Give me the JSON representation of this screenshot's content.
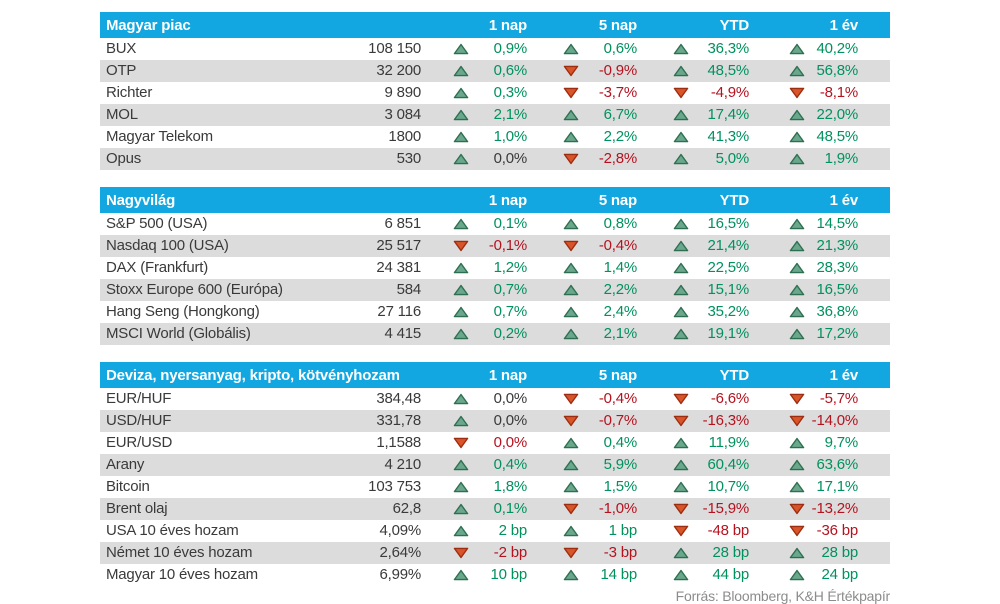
{
  "columns": [
    "1 nap",
    "5 nap",
    "YTD",
    "1 év"
  ],
  "footer": "Forrás: Bloomberg, K&H Értékpapír",
  "colors": {
    "header_bg": "#12a7e0",
    "row_alt_bg": "#dcdcdc",
    "text_dark": "#3a3a3a",
    "positive_text": "#00915e",
    "negative_text": "#b5121f",
    "triangle_up_fill": "#6aa78c",
    "triangle_up_stroke": "#2e6f52",
    "triangle_down_fill": "#d8552a",
    "triangle_down_stroke": "#9d2d10",
    "source_text": "#8c8c8c"
  },
  "chart_data": [
    {
      "type": "table",
      "title": "Magyar piac",
      "columns": [
        "1 nap",
        "5 nap",
        "YTD",
        "1 év"
      ],
      "rows": [
        {
          "name": "BUX",
          "value": "108 150",
          "changes": [
            {
              "dir": "up",
              "tone": "pos",
              "text": "0,9%"
            },
            {
              "dir": "up",
              "tone": "pos",
              "text": "0,6%"
            },
            {
              "dir": "up",
              "tone": "pos",
              "text": "36,3%"
            },
            {
              "dir": "up",
              "tone": "pos",
              "text": "40,2%"
            }
          ]
        },
        {
          "name": "OTP",
          "value": "32 200",
          "changes": [
            {
              "dir": "up",
              "tone": "pos",
              "text": "0,6%"
            },
            {
              "dir": "down",
              "tone": "neg",
              "text": "-0,9%"
            },
            {
              "dir": "up",
              "tone": "pos",
              "text": "48,5%"
            },
            {
              "dir": "up",
              "tone": "pos",
              "text": "56,8%"
            }
          ]
        },
        {
          "name": "Richter",
          "value": "9 890",
          "changes": [
            {
              "dir": "up",
              "tone": "pos",
              "text": "0,3%"
            },
            {
              "dir": "down",
              "tone": "neg",
              "text": "-3,7%"
            },
            {
              "dir": "down",
              "tone": "neg",
              "text": "-4,9%"
            },
            {
              "dir": "down",
              "tone": "neg",
              "text": "-8,1%"
            }
          ]
        },
        {
          "name": "MOL",
          "value": "3 084",
          "changes": [
            {
              "dir": "up",
              "tone": "pos",
              "text": "2,1%"
            },
            {
              "dir": "up",
              "tone": "pos",
              "text": "6,7%"
            },
            {
              "dir": "up",
              "tone": "pos",
              "text": "17,4%"
            },
            {
              "dir": "up",
              "tone": "pos",
              "text": "22,0%"
            }
          ]
        },
        {
          "name": "Magyar Telekom",
          "value": "1800",
          "changes": [
            {
              "dir": "up",
              "tone": "pos",
              "text": "1,0%"
            },
            {
              "dir": "up",
              "tone": "pos",
              "text": "2,2%"
            },
            {
              "dir": "up",
              "tone": "pos",
              "text": "41,3%"
            },
            {
              "dir": "up",
              "tone": "pos",
              "text": "48,5%"
            }
          ]
        },
        {
          "name": "Opus",
          "value": "530",
          "changes": [
            {
              "dir": "up",
              "tone": "neutral",
              "text": "0,0%"
            },
            {
              "dir": "down",
              "tone": "neg",
              "text": "-2,8%"
            },
            {
              "dir": "up",
              "tone": "pos",
              "text": "5,0%"
            },
            {
              "dir": "up",
              "tone": "pos",
              "text": "1,9%"
            }
          ]
        }
      ]
    },
    {
      "type": "table",
      "title": "Nagyvilág",
      "columns": [
        "1 nap",
        "5 nap",
        "YTD",
        "1 év"
      ],
      "rows": [
        {
          "name": "S&P 500 (USA)",
          "value": "6 851",
          "changes": [
            {
              "dir": "up",
              "tone": "pos",
              "text": "0,1%"
            },
            {
              "dir": "up",
              "tone": "pos",
              "text": "0,8%"
            },
            {
              "dir": "up",
              "tone": "pos",
              "text": "16,5%"
            },
            {
              "dir": "up",
              "tone": "pos",
              "text": "14,5%"
            }
          ]
        },
        {
          "name": "Nasdaq 100 (USA)",
          "value": "25 517",
          "changes": [
            {
              "dir": "down",
              "tone": "neg",
              "text": "-0,1%"
            },
            {
              "dir": "down",
              "tone": "neg",
              "text": "-0,4%"
            },
            {
              "dir": "up",
              "tone": "pos",
              "text": "21,4%"
            },
            {
              "dir": "up",
              "tone": "pos",
              "text": "21,3%"
            }
          ]
        },
        {
          "name": "DAX (Frankfurt)",
          "value": "24 381",
          "changes": [
            {
              "dir": "up",
              "tone": "pos",
              "text": "1,2%"
            },
            {
              "dir": "up",
              "tone": "pos",
              "text": "1,4%"
            },
            {
              "dir": "up",
              "tone": "pos",
              "text": "22,5%"
            },
            {
              "dir": "up",
              "tone": "pos",
              "text": "28,3%"
            }
          ]
        },
        {
          "name": "Stoxx Europe 600 (Európa)",
          "value": "584",
          "changes": [
            {
              "dir": "up",
              "tone": "pos",
              "text": "0,7%"
            },
            {
              "dir": "up",
              "tone": "pos",
              "text": "2,2%"
            },
            {
              "dir": "up",
              "tone": "pos",
              "text": "15,1%"
            },
            {
              "dir": "up",
              "tone": "pos",
              "text": "16,5%"
            }
          ]
        },
        {
          "name": "Hang Seng (Hongkong)",
          "value": "27 116",
          "changes": [
            {
              "dir": "up",
              "tone": "pos",
              "text": "0,7%"
            },
            {
              "dir": "up",
              "tone": "pos",
              "text": "2,4%"
            },
            {
              "dir": "up",
              "tone": "pos",
              "text": "35,2%"
            },
            {
              "dir": "up",
              "tone": "pos",
              "text": "36,8%"
            }
          ]
        },
        {
          "name": "MSCI World (Globális)",
          "value": "4 415",
          "changes": [
            {
              "dir": "up",
              "tone": "pos",
              "text": "0,2%"
            },
            {
              "dir": "up",
              "tone": "pos",
              "text": "2,1%"
            },
            {
              "dir": "up",
              "tone": "pos",
              "text": "19,1%"
            },
            {
              "dir": "up",
              "tone": "pos",
              "text": "17,2%"
            }
          ]
        }
      ]
    },
    {
      "type": "table",
      "title": "Deviza, nyersanyag, kripto, kötvényhozam",
      "columns": [
        "1 nap",
        "5 nap",
        "YTD",
        "1 év"
      ],
      "rows": [
        {
          "name": "EUR/HUF",
          "value": "384,48",
          "changes": [
            {
              "dir": "up",
              "tone": "neutral",
              "text": "0,0%"
            },
            {
              "dir": "down",
              "tone": "neg",
              "text": "-0,4%"
            },
            {
              "dir": "down",
              "tone": "neg",
              "text": "-6,6%"
            },
            {
              "dir": "down",
              "tone": "neg",
              "text": "-5,7%"
            }
          ]
        },
        {
          "name": "USD/HUF",
          "value": "331,78",
          "changes": [
            {
              "dir": "up",
              "tone": "neutral",
              "text": "0,0%"
            },
            {
              "dir": "down",
              "tone": "neg",
              "text": "-0,7%"
            },
            {
              "dir": "down",
              "tone": "neg",
              "text": "-16,3%"
            },
            {
              "dir": "down",
              "tone": "neg",
              "text": "-14,0%"
            }
          ]
        },
        {
          "name": "EUR/USD",
          "value": "1,1588",
          "changes": [
            {
              "dir": "down",
              "tone": "neg",
              "text": "0,0%"
            },
            {
              "dir": "up",
              "tone": "pos",
              "text": "0,4%"
            },
            {
              "dir": "up",
              "tone": "pos",
              "text": "11,9%"
            },
            {
              "dir": "up",
              "tone": "pos",
              "text": "9,7%"
            }
          ]
        },
        {
          "name": "Arany",
          "value": "4 210",
          "changes": [
            {
              "dir": "up",
              "tone": "pos",
              "text": "0,4%"
            },
            {
              "dir": "up",
              "tone": "pos",
              "text": "5,9%"
            },
            {
              "dir": "up",
              "tone": "pos",
              "text": "60,4%"
            },
            {
              "dir": "up",
              "tone": "pos",
              "text": "63,6%"
            }
          ]
        },
        {
          "name": "Bitcoin",
          "value": "103 753",
          "changes": [
            {
              "dir": "up",
              "tone": "pos",
              "text": "1,8%"
            },
            {
              "dir": "up",
              "tone": "pos",
              "text": "1,5%"
            },
            {
              "dir": "up",
              "tone": "pos",
              "text": "10,7%"
            },
            {
              "dir": "up",
              "tone": "pos",
              "text": "17,1%"
            }
          ]
        },
        {
          "name": "Brent olaj",
          "value": "62,8",
          "changes": [
            {
              "dir": "up",
              "tone": "pos",
              "text": "0,1%"
            },
            {
              "dir": "down",
              "tone": "neg",
              "text": "-1,0%"
            },
            {
              "dir": "down",
              "tone": "neg",
              "text": "-15,9%"
            },
            {
              "dir": "down",
              "tone": "neg",
              "text": "-13,2%"
            }
          ]
        },
        {
          "name": "USA 10 éves hozam",
          "value": "4,09%",
          "changes": [
            {
              "dir": "up",
              "tone": "pos",
              "text": "2 bp"
            },
            {
              "dir": "up",
              "tone": "pos",
              "text": "1 bp"
            },
            {
              "dir": "down",
              "tone": "neg",
              "text": "-48 bp"
            },
            {
              "dir": "down",
              "tone": "neg",
              "text": "-36 bp"
            }
          ]
        },
        {
          "name": "Német 10 éves hozam",
          "value": "2,64%",
          "changes": [
            {
              "dir": "down",
              "tone": "neg",
              "text": "-2 bp"
            },
            {
              "dir": "down",
              "tone": "neg",
              "text": "-3 bp"
            },
            {
              "dir": "up",
              "tone": "pos",
              "text": "28 bp"
            },
            {
              "dir": "up",
              "tone": "pos",
              "text": "28 bp"
            }
          ]
        },
        {
          "name": "Magyar 10 éves hozam",
          "value": "6,99%",
          "changes": [
            {
              "dir": "up",
              "tone": "pos",
              "text": "10 bp"
            },
            {
              "dir": "up",
              "tone": "pos",
              "text": "14 bp"
            },
            {
              "dir": "up",
              "tone": "pos",
              "text": "44 bp"
            },
            {
              "dir": "up",
              "tone": "pos",
              "text": "24 bp"
            }
          ]
        }
      ]
    }
  ]
}
